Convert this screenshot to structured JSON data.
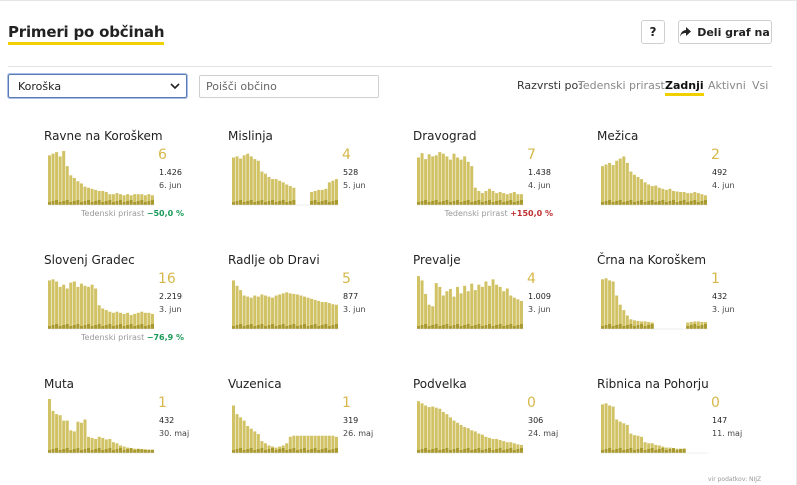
{
  "title": "Primeri po občinah",
  "help_label": "?",
  "share_label": "Deli graf na",
  "region_select": "Koroška",
  "search": {
    "placeholder": "Poišči občino"
  },
  "sort": {
    "label": "Razvrsti po:",
    "options": [
      "Tedenski prirast",
      "Zadnji",
      "Aktivni",
      "Vsi"
    ],
    "active": "Zadnji"
  },
  "colors": {
    "bar": "#d1c266",
    "bar_dark": "#a89a2e",
    "accent": "#f0d000",
    "count": "#d6b84a"
  },
  "municipalities": [
    {
      "name": "Ravne na Koroškem",
      "count": "6",
      "value": "1.426",
      "date": "6. jun",
      "growth_label": "Tedenski prirast",
      "growth": "−50,0 %",
      "growth_dir": "neg",
      "bars": [
        0.92,
        0.95,
        0.98,
        0.9,
        1.0,
        0.72,
        0.55,
        0.5,
        0.44,
        0.4,
        0.34,
        0.32,
        0.3,
        0.28,
        0.26,
        0.26,
        0.24,
        0.2,
        0.2,
        0.22,
        0.2,
        0.18,
        0.2,
        0.18,
        0.2,
        0.2,
        0.2,
        0.18,
        0.2,
        0.18
      ]
    },
    {
      "name": "Mislinja",
      "count": "4",
      "value": "528",
      "date": "5. jun",
      "growth_label": "",
      "growth": "",
      "growth_dir": "",
      "bars": [
        0.88,
        0.9,
        0.86,
        0.92,
        0.95,
        0.9,
        0.85,
        0.82,
        0.62,
        0.58,
        0.52,
        0.48,
        0.48,
        0.45,
        0.42,
        0.38,
        0.35,
        0.32,
        0.0,
        0.0,
        0.0,
        0.0,
        0.24,
        0.26,
        0.28,
        0.28,
        0.3,
        0.42,
        0.45,
        0.48
      ]
    },
    {
      "name": "Dravograd",
      "count": "7",
      "value": "1.438",
      "date": "4. jun",
      "growth_label": "Tedenski prirast",
      "growth": "+150,0 %",
      "growth_dir": "pos",
      "bars": [
        0.88,
        0.96,
        0.85,
        0.94,
        0.9,
        0.92,
        0.98,
        0.95,
        0.9,
        0.84,
        0.95,
        0.88,
        0.84,
        0.9,
        0.8,
        0.72,
        0.32,
        0.26,
        0.22,
        0.26,
        0.3,
        0.26,
        0.22,
        0.24,
        0.22,
        0.2,
        0.22,
        0.24,
        0.2,
        0.2
      ]
    },
    {
      "name": "Mežica",
      "count": "2",
      "value": "492",
      "date": "4. jun",
      "growth_label": "",
      "growth": "",
      "growth_dir": "",
      "bars": [
        0.72,
        0.75,
        0.78,
        0.74,
        0.82,
        0.86,
        0.9,
        0.78,
        0.62,
        0.56,
        0.52,
        0.48,
        0.42,
        0.38,
        0.35,
        0.36,
        0.32,
        0.3,
        0.28,
        0.3,
        0.26,
        0.25,
        0.24,
        0.24,
        0.22,
        0.22,
        0.24,
        0.22,
        0.2,
        0.18
      ]
    },
    {
      "name": "Slovenj Gradec",
      "count": "16",
      "value": "2.219",
      "date": "3. jun",
      "growth_label": "Tedenski prirast",
      "growth": "−76,9 %",
      "growth_dir": "neg",
      "bars": [
        0.9,
        0.92,
        0.88,
        0.78,
        0.82,
        0.75,
        0.86,
        0.88,
        0.78,
        0.84,
        0.8,
        0.78,
        0.82,
        0.75,
        0.44,
        0.38,
        0.35,
        0.32,
        0.3,
        0.32,
        0.3,
        0.28,
        0.3,
        0.26,
        0.28,
        0.3,
        0.32,
        0.3,
        0.3,
        0.28
      ]
    },
    {
      "name": "Radlje ob Dravi",
      "count": "5",
      "value": "877",
      "date": "3. jun",
      "growth_label": "",
      "growth": "",
      "growth_dir": "",
      "bars": [
        0.9,
        0.8,
        0.72,
        0.62,
        0.6,
        0.58,
        0.62,
        0.6,
        0.64,
        0.62,
        0.6,
        0.58,
        0.62,
        0.64,
        0.66,
        0.68,
        0.66,
        0.65,
        0.64,
        0.62,
        0.6,
        0.58,
        0.56,
        0.54,
        0.52,
        0.5,
        0.5,
        0.48,
        0.46,
        0.45
      ]
    },
    {
      "name": "Prevalje",
      "count": "4",
      "value": "1.009",
      "date": "3. jun",
      "growth_label": "",
      "growth": "",
      "growth_dir": "",
      "bars": [
        0.98,
        0.9,
        0.65,
        0.45,
        0.42,
        0.85,
        0.78,
        0.62,
        0.7,
        0.74,
        0.6,
        0.78,
        0.66,
        0.8,
        0.7,
        0.84,
        0.72,
        0.82,
        0.78,
        0.88,
        0.8,
        0.92,
        0.82,
        0.78,
        0.7,
        0.75,
        0.62,
        0.58,
        0.55,
        0.52
      ]
    },
    {
      "name": "Črna na Koroškem",
      "count": "1",
      "value": "432",
      "date": "3. jun",
      "growth_label": "",
      "growth": "",
      "growth_dir": "",
      "bars": [
        0.92,
        0.94,
        0.9,
        0.88,
        0.62,
        0.45,
        0.35,
        0.25,
        0.18,
        0.16,
        0.15,
        0.14,
        0.14,
        0.13,
        0.12,
        0.0,
        0.0,
        0.0,
        0.0,
        0.0,
        0.0,
        0.0,
        0.0,
        0.0,
        0.12,
        0.13,
        0.14,
        0.14,
        0.13,
        0.13
      ]
    },
    {
      "name": "Muta",
      "count": "1",
      "value": "432",
      "date": "30. maj",
      "growth_label": "",
      "growth": "",
      "growth_dir": "",
      "bars": [
        1.0,
        0.78,
        0.72,
        0.7,
        0.6,
        0.6,
        0.42,
        0.4,
        0.58,
        0.56,
        0.62,
        0.3,
        0.28,
        0.26,
        0.3,
        0.28,
        0.25,
        0.26,
        0.2,
        0.18,
        0.14,
        0.12,
        0.1,
        0.09,
        0.08,
        0.08,
        0.07,
        0.07,
        0.06,
        0.06
      ]
    },
    {
      "name": "Vuzenica",
      "count": "1",
      "value": "319",
      "date": "26. maj",
      "growth_label": "",
      "growth": "",
      "growth_dir": "",
      "bars": [
        0.88,
        0.72,
        0.66,
        0.6,
        0.5,
        0.45,
        0.4,
        0.35,
        0.22,
        0.18,
        0.14,
        0.12,
        0.1,
        0.12,
        0.14,
        0.18,
        0.3,
        0.32,
        0.32,
        0.32,
        0.32,
        0.32,
        0.32,
        0.32,
        0.32,
        0.32,
        0.32,
        0.32,
        0.32,
        0.3
      ]
    },
    {
      "name": "Podvelka",
      "count": "0",
      "value": "306",
      "date": "24. maj",
      "growth_label": "",
      "growth": "",
      "growth_dir": "",
      "bars": [
        0.96,
        0.92,
        0.88,
        0.85,
        0.86,
        0.84,
        0.82,
        0.76,
        0.72,
        0.66,
        0.6,
        0.56,
        0.52,
        0.48,
        0.46,
        0.42,
        0.4,
        0.36,
        0.34,
        0.3,
        0.28,
        0.26,
        0.26,
        0.24,
        0.22,
        0.2,
        0.2,
        0.18,
        0.16,
        0.15
      ]
    },
    {
      "name": "Ribnica na Pohorju",
      "count": "0",
      "value": "147",
      "date": "11. maj",
      "growth_label": "",
      "growth": "",
      "growth_dir": "",
      "bars": [
        0.9,
        0.92,
        0.88,
        0.86,
        0.62,
        0.58,
        0.55,
        0.52,
        0.36,
        0.33,
        0.32,
        0.3,
        0.2,
        0.18,
        0.18,
        0.15,
        0.14,
        0.12,
        0.1,
        0.1,
        0.09,
        0.08,
        0.08,
        0.08,
        0.0,
        0.0,
        0.0,
        0.0,
        0.0,
        0.0
      ]
    }
  ],
  "source": "vir podatkov: NIJZ"
}
